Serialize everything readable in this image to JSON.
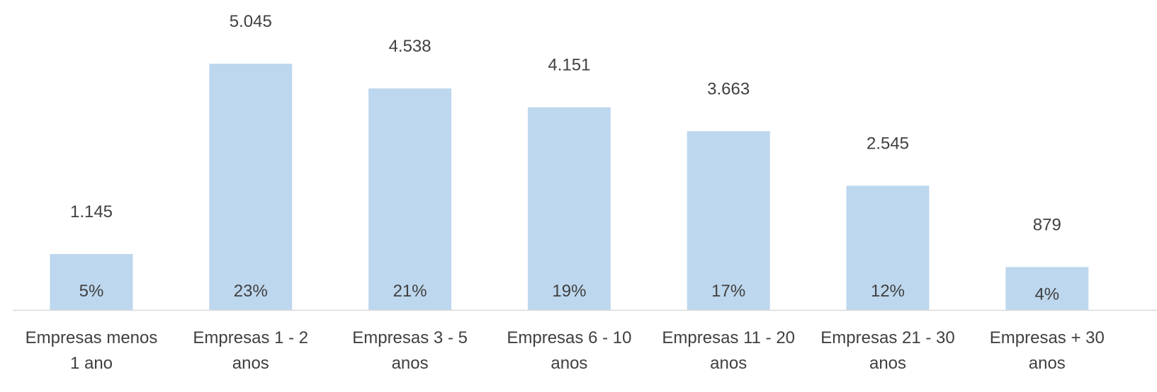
{
  "chart_data": {
    "type": "bar",
    "title": "",
    "xlabel": "",
    "ylabel": "",
    "categories": [
      [
        "Empresas menos",
        "1 ano"
      ],
      [
        "Empresas 1 - 2",
        "anos"
      ],
      [
        "Empresas 3 - 5",
        "anos"
      ],
      [
        "Empresas 6 - 10",
        "anos"
      ],
      [
        "Empresas 11 - 20",
        "anos"
      ],
      [
        "Empresas 21 - 30",
        "anos"
      ],
      [
        "Empresas + 30",
        "anos"
      ]
    ],
    "values": [
      1145,
      5045,
      4538,
      4151,
      3663,
      2545,
      879
    ],
    "value_labels": [
      "1.145",
      "5.045",
      "4.538",
      "4.151",
      "3.663",
      "2.545",
      "879"
    ],
    "percent_labels": [
      "5%",
      "23%",
      "21%",
      "19%",
      "17%",
      "12%",
      "4%"
    ],
    "ylim": [
      0,
      5900
    ],
    "grid": false,
    "bar_color": "#bdd7ee",
    "axis_color": "#d9d9d9",
    "text_color": "#404040"
  }
}
